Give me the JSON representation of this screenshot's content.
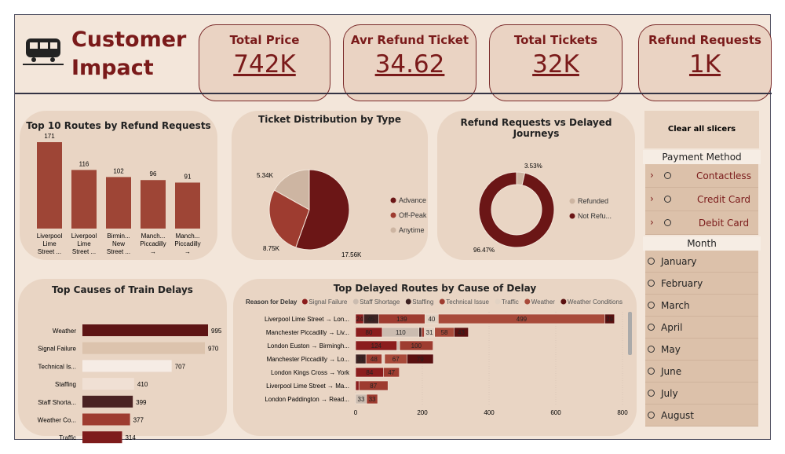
{
  "header": {
    "title_line1": "Customer",
    "title_line2": "Impact",
    "logo_icon": "train-icon"
  },
  "kpis": [
    {
      "label": "Total Price",
      "value": "742K"
    },
    {
      "label": "Avr Refund Ticket",
      "value": "34.62"
    },
    {
      "label": "Total Tickets",
      "value": "32K"
    },
    {
      "label": "Refund Requests",
      "value": "1K"
    }
  ],
  "slicers": {
    "clear_label": "Clear all slicers",
    "payment_title": "Payment Method",
    "payment": [
      "Contactless",
      "Credit Card",
      "Debit Card"
    ],
    "month_title": "Month",
    "months": [
      "January",
      "February",
      "March",
      "April",
      "May",
      "June",
      "July",
      "August"
    ]
  },
  "colors": {
    "accent": "#7a1a1a",
    "background": "#f3e6da",
    "card": "#e9d5c4"
  },
  "chart_data": [
    {
      "type": "bar",
      "title": "Top 10 Routes by Refund Requests",
      "categories": [
        "Liverpool Lime Street ...",
        "Liverpool Lime Street ...",
        "Birmin... New Street ...",
        "Manch... Piccadilly → Lond...",
        "Manch... Piccadilly → Liver..."
      ],
      "values": [
        171,
        116,
        102,
        96,
        91
      ],
      "color": "#9e4536"
    },
    {
      "type": "pie",
      "title": "Ticket Distribution by Type",
      "labels": [
        "Advance",
        "Off-Peak",
        "Anytime"
      ],
      "values": [
        17.56,
        8.75,
        5.34
      ],
      "value_labels": [
        "17.56K",
        "8.75K",
        "5.34K"
      ],
      "colors": [
        "#6b1616",
        "#9e3c30",
        "#cdb5a2"
      ],
      "legend": "right"
    },
    {
      "type": "pie",
      "donut": true,
      "title": "Refund Requests vs Delayed Journeys",
      "labels": [
        "Refunded",
        "Not Refu..."
      ],
      "values": [
        3.53,
        96.47
      ],
      "value_labels": [
        "3.53%",
        "96.47%"
      ],
      "colors": [
        "#cdb5a2",
        "#6b1616"
      ],
      "legend": "right"
    },
    {
      "type": "bar",
      "orientation": "horizontal",
      "title": "Top Causes of Train Delays",
      "categories": [
        "Weather",
        "Signal Failure",
        "Technical Is...",
        "Staffing",
        "Staff Shorta...",
        "Weather Co...",
        "Traffic"
      ],
      "values": [
        995,
        970,
        707,
        410,
        399,
        377,
        314
      ],
      "colors": [
        "#5e1515",
        "#dcc3ad",
        "#f6ece5",
        "#f0e0d4",
        "#4a2222",
        "#9e3c30",
        "#7e1c1c"
      ]
    },
    {
      "type": "bar",
      "orientation": "horizontal",
      "stacked": true,
      "title": "Top Delayed Routes by Cause of Delay",
      "legend_title": "Reason for Delay",
      "legend": "top",
      "xlim": [
        0,
        800
      ],
      "xticks": [
        0,
        200,
        400,
        600,
        800
      ],
      "series_names": [
        "Signal Failure",
        "Staff Shortage",
        "Staffing",
        "Technical Issue",
        "Traffic",
        "Weather",
        "Weather Conditions"
      ],
      "series_colors": [
        "#8b1d1d",
        "#cbbcb0",
        "#3e2222",
        "#9e3c30",
        "#e2d2c3",
        "#a84a3a",
        "#5a1010"
      ],
      "categories": [
        "Liverpool Lime Street → Lon...",
        "Manchester Piccadilly → Liv...",
        "London Euston → Birmingh...",
        "Manchester Piccadilly → Lo...",
        "London Kings Cross → York",
        "Liverpool Lime Street → Ma...",
        "London Paddington → Read..."
      ],
      "values": [
        [
          24,
          0,
          45,
          139,
          40,
          499,
          29
        ],
        [
          80,
          110,
          8,
          8,
          31,
          58,
          43
        ],
        [
          124,
          8,
          0,
          100,
          0,
          0,
          0
        ],
        [
          0,
          0,
          31,
          48,
          8,
          67,
          79
        ],
        [
          84,
          0,
          0,
          47,
          0,
          0,
          0
        ],
        [
          10,
          0,
          0,
          87,
          0,
          0,
          0
        ],
        [
          0,
          33,
          0,
          33,
          0,
          0,
          0
        ]
      ]
    }
  ]
}
